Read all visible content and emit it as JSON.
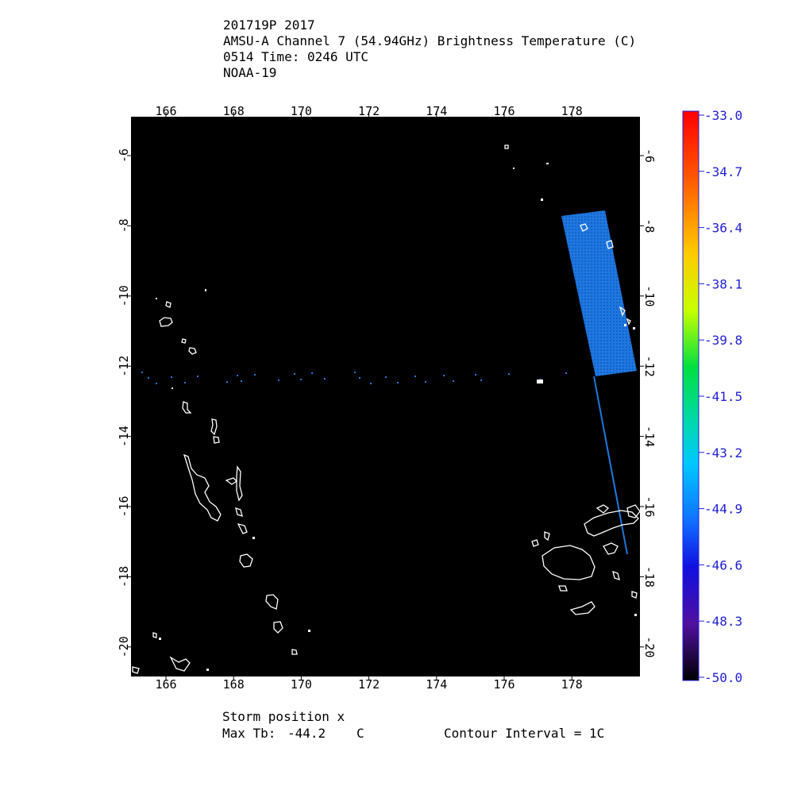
{
  "header": {
    "line1": "201719P 2017",
    "line2": "AMSU-A Channel 7 (54.94GHz) Brightness Temperature (C)",
    "line3": "0514 Time: 0246 UTC",
    "line4": "NOAA-19"
  },
  "map": {
    "lon_ticks": [
      "166",
      "168",
      "170",
      "172",
      "174",
      "176",
      "178"
    ],
    "lat_ticks": [
      "-6",
      "-8",
      "-10",
      "-12",
      "-14",
      "-16",
      "-18",
      "-20"
    ],
    "background_color": "#000000",
    "coastline_color": "#ffffff",
    "swath_color": "#1e73d8"
  },
  "colorbar": {
    "labels": [
      "-33.0",
      "-34.7",
      "-36.4",
      "-38.1",
      "-39.8",
      "-41.5",
      "-43.2",
      "-44.9",
      "-46.6",
      "-48.3",
      "-50.0"
    ],
    "max": -33.0,
    "min": -50.0
  },
  "footer": {
    "storm_position": "Storm position x",
    "max_tb_label": "Max Tb:",
    "max_tb_value": "-44.2",
    "max_tb_unit": "C",
    "contour_interval": "Contour Interval = 1C"
  }
}
